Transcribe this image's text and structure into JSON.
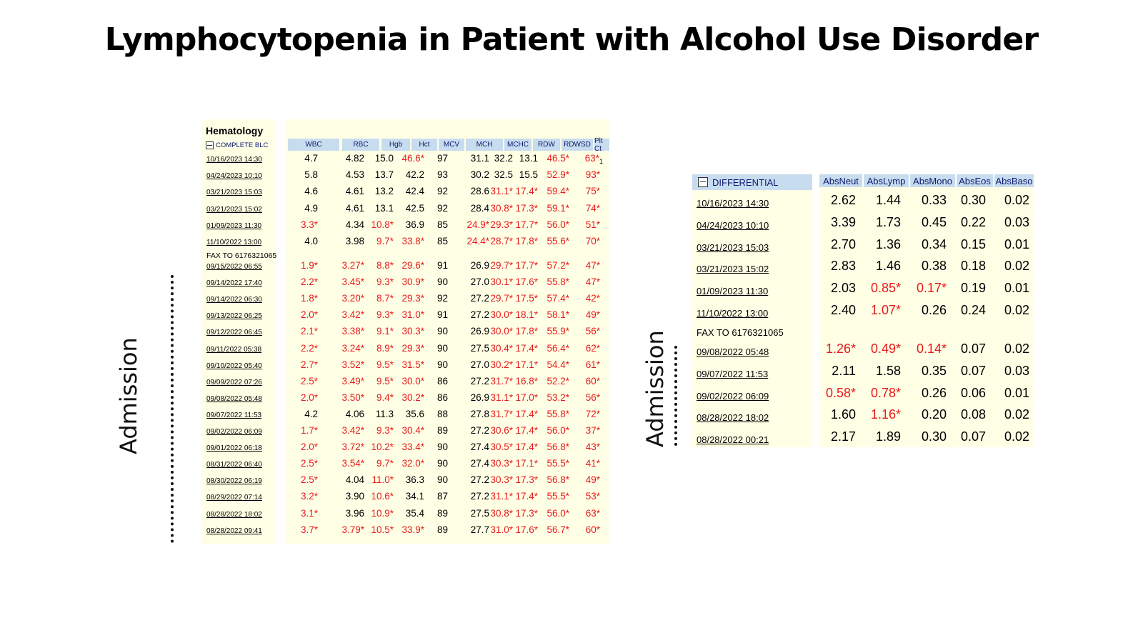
{
  "title": "Lymphocytopenia in Patient with Alcohol Use Disorder",
  "admission_label": "Admission",
  "hematology": {
    "heading": "Hematology",
    "section": "COMPLETE BLC",
    "columns": [
      "WBC",
      "RBC",
      "Hgb",
      "Hct",
      "MCV",
      "MCH",
      "MCHC",
      "RDW",
      "RDWSD",
      "Plt Ct"
    ],
    "note": "FAX TO 6176321065",
    "rows": [
      {
        "date": "10/16/2023 14:30",
        "values": [
          "4.7",
          "4.82",
          "15.0",
          "46.6*",
          "97",
          "31.1",
          "32.2",
          "13.1",
          "46.5*",
          "63*"
        ],
        "plt_sub": "1"
      },
      {
        "date": "04/24/2023 10:10",
        "values": [
          "5.8",
          "4.53",
          "13.7",
          "42.2",
          "93",
          "30.2",
          "32.5",
          "15.5",
          "52.9*",
          "93*"
        ]
      },
      {
        "date": "03/21/2023 15:03",
        "values": [
          "4.6",
          "4.61",
          "13.2",
          "42.4",
          "92",
          "28.6",
          "31.1*",
          "17.4*",
          "59.4*",
          "75*"
        ]
      },
      {
        "date": "03/21/2023 15:02",
        "values": [
          "4.9",
          "4.61",
          "13.1",
          "42.5",
          "92",
          "28.4",
          "30.8*",
          "17.3*",
          "59.1*",
          "74*"
        ]
      },
      {
        "date": "01/09/2023 11:30",
        "values": [
          "3.3*",
          "4.34",
          "10.8*",
          "36.9",
          "85",
          "24.9*",
          "29.3*",
          "17.7*",
          "56.0*",
          "51*"
        ]
      },
      {
        "date": "11/10/2022 13:00",
        "values": [
          "4.0",
          "3.98",
          "9.7*",
          "33.8*",
          "85",
          "24.4*",
          "28.7*",
          "17.8*",
          "55.6*",
          "70*"
        ]
      },
      {
        "date": "09/15/2022 06:55",
        "values": [
          "1.9*",
          "3.27*",
          "8.8*",
          "29.6*",
          "91",
          "26.9",
          "29.7*",
          "17.7*",
          "57.2*",
          "47*"
        ]
      },
      {
        "date": "09/14/2022 17:40",
        "values": [
          "2.2*",
          "3.45*",
          "9.3*",
          "30.9*",
          "90",
          "27.0",
          "30.1*",
          "17.6*",
          "55.8*",
          "47*"
        ]
      },
      {
        "date": "09/14/2022 06:30",
        "values": [
          "1.8*",
          "3.20*",
          "8.7*",
          "29.3*",
          "92",
          "27.2",
          "29.7*",
          "17.5*",
          "57.4*",
          "42*"
        ]
      },
      {
        "date": "09/13/2022 06:25",
        "values": [
          "2.0*",
          "3.42*",
          "9.3*",
          "31.0*",
          "91",
          "27.2",
          "30.0*",
          "18.1*",
          "58.1*",
          "49*"
        ]
      },
      {
        "date": "09/12/2022 06:45",
        "values": [
          "2.1*",
          "3.38*",
          "9.1*",
          "30.3*",
          "90",
          "26.9",
          "30.0*",
          "17.8*",
          "55.9*",
          "56*"
        ]
      },
      {
        "date": "09/11/2022 05:38",
        "values": [
          "2.2*",
          "3.24*",
          "8.9*",
          "29.3*",
          "90",
          "27.5",
          "30.4*",
          "17.4*",
          "56.4*",
          "62*"
        ]
      },
      {
        "date": "09/10/2022 05:40",
        "values": [
          "2.7*",
          "3.52*",
          "9.5*",
          "31.5*",
          "90",
          "27.0",
          "30.2*",
          "17.1*",
          "54.4*",
          "61*"
        ]
      },
      {
        "date": "09/09/2022 07:26",
        "values": [
          "2.5*",
          "3.49*",
          "9.5*",
          "30.0*",
          "86",
          "27.2",
          "31.7*",
          "16.8*",
          "52.2*",
          "60*"
        ]
      },
      {
        "date": "09/08/2022 05:48",
        "values": [
          "2.0*",
          "3.50*",
          "9.4*",
          "30.2*",
          "86",
          "26.9",
          "31.1*",
          "17.0*",
          "53.2*",
          "56*"
        ]
      },
      {
        "date": "09/07/2022 11:53",
        "values": [
          "4.2",
          "4.06",
          "11.3",
          "35.6",
          "88",
          "27.8",
          "31.7*",
          "17.4*",
          "55.8*",
          "72*"
        ]
      },
      {
        "date": "09/02/2022 06:09",
        "values": [
          "1.7*",
          "3.42*",
          "9.3*",
          "30.4*",
          "89",
          "27.2",
          "30.6*",
          "17.4*",
          "56.0*",
          "37*"
        ]
      },
      {
        "date": "09/01/2022 06:18",
        "values": [
          "2.0*",
          "3.72*",
          "10.2*",
          "33.4*",
          "90",
          "27.4",
          "30.5*",
          "17.4*",
          "56.8*",
          "43*"
        ]
      },
      {
        "date": "08/31/2022 06:40",
        "values": [
          "2.5*",
          "3.54*",
          "9.7*",
          "32.0*",
          "90",
          "27.4",
          "30.3*",
          "17.1*",
          "55.5*",
          "41*"
        ]
      },
      {
        "date": "08/30/2022 06:19",
        "values": [
          "2.5*",
          "4.04",
          "11.0*",
          "36.3",
          "90",
          "27.2",
          "30.3*",
          "17.3*",
          "56.8*",
          "49*"
        ]
      },
      {
        "date": "08/29/2022 07:14",
        "values": [
          "3.2*",
          "3.90",
          "10.6*",
          "34.1",
          "87",
          "27.2",
          "31.1*",
          "17.4*",
          "55.5*",
          "53*"
        ]
      },
      {
        "date": "08/28/2022 18:02",
        "values": [
          "3.1*",
          "3.96",
          "10.9*",
          "35.4",
          "89",
          "27.5",
          "30.8*",
          "17.3*",
          "56.0*",
          "63*"
        ]
      },
      {
        "date": "08/28/2022 09:41",
        "values": [
          "3.7*",
          "3.79*",
          "10.5*",
          "33.9*",
          "89",
          "27.7",
          "31.0*",
          "17.6*",
          "56.7*",
          "60*"
        ]
      }
    ]
  },
  "differential": {
    "section": "DIFFERENTIAL",
    "columns": [
      "AbsNeut",
      "AbsLymp",
      "AbsMono",
      "AbsEos",
      "AbsBaso"
    ],
    "note": "FAX TO 6176321065",
    "rows": [
      {
        "date": "10/16/2023 14:30",
        "values": [
          "2.62",
          "1.44",
          "0.33",
          "0.30",
          "0.02"
        ]
      },
      {
        "date": "04/24/2023 10:10",
        "values": [
          "3.39",
          "1.73",
          "0.45",
          "0.22",
          "0.03"
        ]
      },
      {
        "date": "03/21/2023 15:03",
        "values": [
          "2.70",
          "1.36",
          "0.34",
          "0.15",
          "0.01"
        ]
      },
      {
        "date": "03/21/2023 15:02",
        "values": [
          "2.83",
          "1.46",
          "0.38",
          "0.18",
          "0.02"
        ]
      },
      {
        "date": "01/09/2023 11:30",
        "values": [
          "2.03",
          "0.85*",
          "0.17*",
          "0.19",
          "0.01"
        ]
      },
      {
        "date": "11/10/2022 13:00",
        "values": [
          "2.40",
          "1.07*",
          "0.26",
          "0.24",
          "0.02"
        ]
      },
      {
        "date": "09/08/2022 05:48",
        "values": [
          "1.26*",
          "0.49*",
          "0.14*",
          "0.07",
          "0.02"
        ]
      },
      {
        "date": "09/07/2022 11:53",
        "values": [
          "2.11",
          "1.58",
          "0.35",
          "0.07",
          "0.03"
        ]
      },
      {
        "date": "09/02/2022 06:09",
        "values": [
          "0.58*",
          "0.78*",
          "0.26",
          "0.06",
          "0.01"
        ]
      },
      {
        "date": "08/28/2022 18:02",
        "values": [
          "1.60",
          "1.16*",
          "0.20",
          "0.08",
          "0.02"
        ]
      },
      {
        "date": "08/28/2022 00:21",
        "values": [
          "2.17",
          "1.89",
          "0.30",
          "0.07",
          "0.02"
        ]
      }
    ]
  }
}
